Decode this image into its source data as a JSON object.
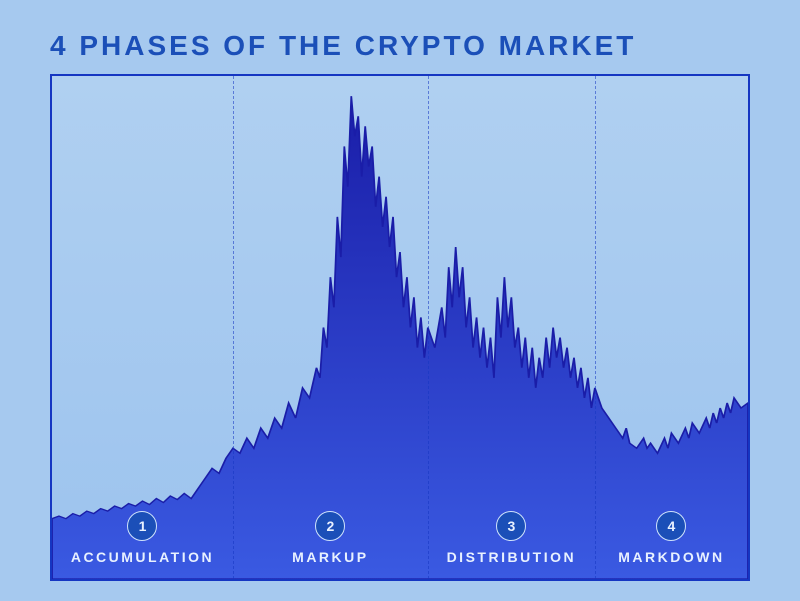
{
  "title": "4 Phases of the Crypto Market",
  "chart": {
    "type": "area",
    "background_gradient": [
      "#b0d0f1",
      "#9cc3ee"
    ],
    "frame_border_color": "#1536c2",
    "divider_color": "#1536c2",
    "divider_dash": "4 4",
    "area_fill_gradient_top": "#1a1da8",
    "area_fill_gradient_bottom": "#3a5ae2",
    "stroke_color": "#1a1da8",
    "xlim": [
      0,
      100
    ],
    "ylim": [
      0,
      100
    ],
    "divider_positions_pct": [
      26,
      54,
      78
    ],
    "phases": [
      {
        "number": "1",
        "label": "Accumulation"
      },
      {
        "number": "2",
        "label": "Markup"
      },
      {
        "number": "3",
        "label": "Distribution"
      },
      {
        "number": "4",
        "label": "Markdown"
      }
    ],
    "badge_bg": "#1b4fb8",
    "badge_border": "#cfe3fb",
    "badge_text_color": "#e8f1ff",
    "label_color": "#e8f1ff",
    "label_fontsize": 14,
    "title_color": "#1b4fb8",
    "title_fontsize": 28,
    "series": [
      [
        0,
        12
      ],
      [
        1,
        12.5
      ],
      [
        2,
        12
      ],
      [
        3,
        13
      ],
      [
        4,
        12.5
      ],
      [
        5,
        13.5
      ],
      [
        6,
        13
      ],
      [
        7,
        14
      ],
      [
        8,
        13.5
      ],
      [
        9,
        14.5
      ],
      [
        10,
        14
      ],
      [
        11,
        15
      ],
      [
        12,
        14.5
      ],
      [
        13,
        15.5
      ],
      [
        14,
        14.8
      ],
      [
        15,
        16
      ],
      [
        16,
        15.2
      ],
      [
        17,
        16.5
      ],
      [
        18,
        15.8
      ],
      [
        19,
        17
      ],
      [
        20,
        16
      ],
      [
        21,
        18
      ],
      [
        22,
        20
      ],
      [
        23,
        22
      ],
      [
        24,
        21
      ],
      [
        25,
        24
      ],
      [
        26,
        26
      ],
      [
        27,
        25
      ],
      [
        28,
        28
      ],
      [
        29,
        26
      ],
      [
        30,
        30
      ],
      [
        31,
        28
      ],
      [
        32,
        32
      ],
      [
        33,
        30
      ],
      [
        34,
        35
      ],
      [
        35,
        32
      ],
      [
        36,
        38
      ],
      [
        37,
        36
      ],
      [
        38,
        42
      ],
      [
        38.5,
        40
      ],
      [
        39,
        50
      ],
      [
        39.5,
        46
      ],
      [
        40,
        60
      ],
      [
        40.5,
        54
      ],
      [
        41,
        72
      ],
      [
        41.5,
        64
      ],
      [
        42,
        86
      ],
      [
        42.5,
        78
      ],
      [
        43,
        96
      ],
      [
        43.5,
        88
      ],
      [
        44,
        92
      ],
      [
        44.5,
        80
      ],
      [
        45,
        90
      ],
      [
        45.5,
        82
      ],
      [
        46,
        86
      ],
      [
        46.5,
        74
      ],
      [
        47,
        80
      ],
      [
        47.5,
        70
      ],
      [
        48,
        76
      ],
      [
        48.5,
        66
      ],
      [
        49,
        72
      ],
      [
        49.5,
        60
      ],
      [
        50,
        65
      ],
      [
        50.5,
        54
      ],
      [
        51,
        60
      ],
      [
        51.5,
        50
      ],
      [
        52,
        56
      ],
      [
        52.5,
        46
      ],
      [
        53,
        52
      ],
      [
        53.5,
        44
      ],
      [
        54,
        50
      ],
      [
        55,
        46
      ],
      [
        56,
        54
      ],
      [
        56.5,
        48
      ],
      [
        57,
        62
      ],
      [
        57.5,
        54
      ],
      [
        58,
        66
      ],
      [
        58.5,
        56
      ],
      [
        59,
        62
      ],
      [
        59.5,
        50
      ],
      [
        60,
        56
      ],
      [
        60.5,
        46
      ],
      [
        61,
        52
      ],
      [
        61.5,
        44
      ],
      [
        62,
        50
      ],
      [
        62.5,
        42
      ],
      [
        63,
        48
      ],
      [
        63.5,
        40
      ],
      [
        64,
        56
      ],
      [
        64.5,
        48
      ],
      [
        65,
        60
      ],
      [
        65.5,
        50
      ],
      [
        66,
        56
      ],
      [
        66.5,
        46
      ],
      [
        67,
        50
      ],
      [
        67.5,
        42
      ],
      [
        68,
        48
      ],
      [
        68.5,
        40
      ],
      [
        69,
        46
      ],
      [
        69.5,
        38
      ],
      [
        70,
        44
      ],
      [
        70.5,
        40
      ],
      [
        71,
        48
      ],
      [
        71.5,
        42
      ],
      [
        72,
        50
      ],
      [
        72.5,
        44
      ],
      [
        73,
        48
      ],
      [
        73.5,
        42
      ],
      [
        74,
        46
      ],
      [
        74.5,
        40
      ],
      [
        75,
        44
      ],
      [
        75.5,
        38
      ],
      [
        76,
        42
      ],
      [
        76.5,
        36
      ],
      [
        77,
        40
      ],
      [
        77.5,
        34
      ],
      [
        78,
        38
      ],
      [
        79,
        34
      ],
      [
        80,
        32
      ],
      [
        81,
        30
      ],
      [
        82,
        28
      ],
      [
        82.5,
        30
      ],
      [
        83,
        27
      ],
      [
        84,
        26
      ],
      [
        85,
        28
      ],
      [
        85.5,
        26
      ],
      [
        86,
        27
      ],
      [
        87,
        25
      ],
      [
        88,
        28
      ],
      [
        88.5,
        26
      ],
      [
        89,
        29
      ],
      [
        90,
        27
      ],
      [
        91,
        30
      ],
      [
        91.5,
        28
      ],
      [
        92,
        31
      ],
      [
        93,
        29
      ],
      [
        94,
        32
      ],
      [
        94.5,
        30
      ],
      [
        95,
        33
      ],
      [
        95.5,
        31
      ],
      [
        96,
        34
      ],
      [
        96.5,
        32
      ],
      [
        97,
        35
      ],
      [
        97.5,
        33
      ],
      [
        98,
        36
      ],
      [
        99,
        34
      ],
      [
        100,
        35
      ]
    ]
  }
}
